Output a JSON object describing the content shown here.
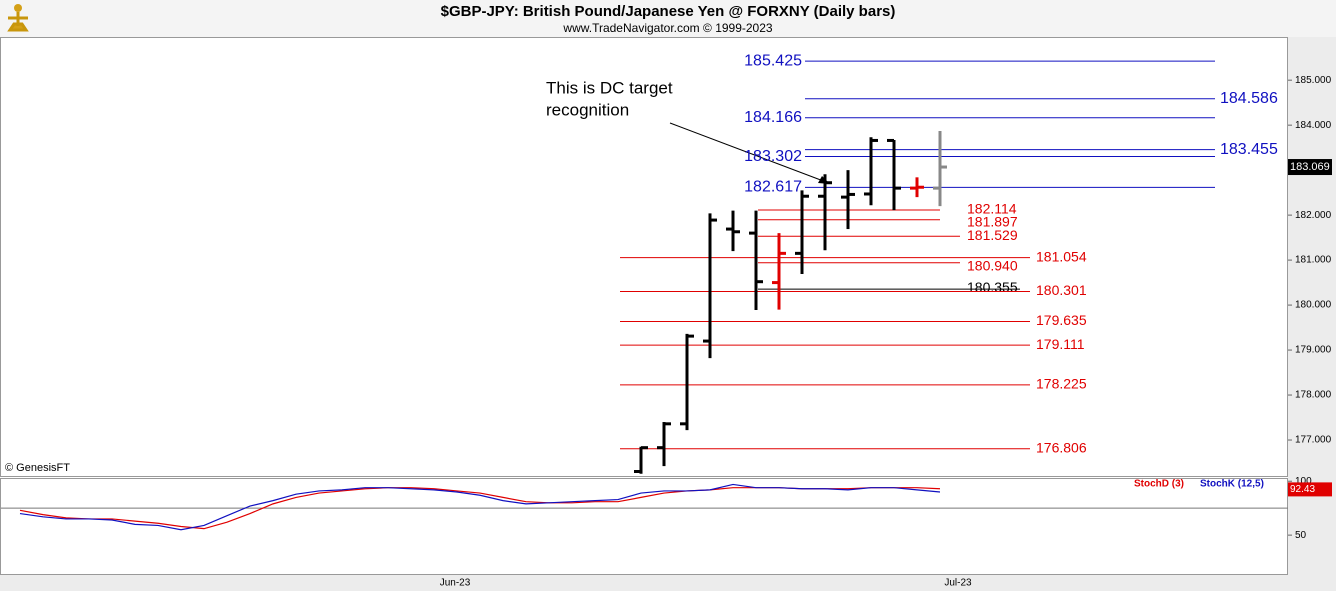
{
  "chart_data": {
    "type": "ohlc",
    "title": "$GBP-JPY:  British Pound/Japanese Yen @ FORXNY  (Daily bars)",
    "subtitle": "www.TradeNavigator.com © 1999-2023",
    "copyright": "© GenesisFT",
    "annotation": [
      "This is DC target",
      "recognition"
    ],
    "ylim": [
      176.2,
      185.96
    ],
    "yticks": [
      {
        "value": 177,
        "label": "177.000"
      },
      {
        "value": 178,
        "label": "178.000"
      },
      {
        "value": 179,
        "label": "179.000"
      },
      {
        "value": 180,
        "label": "180.000"
      },
      {
        "value": 181,
        "label": "181.000"
      },
      {
        "value": 182,
        "label": "182.000"
      },
      {
        "value": 183,
        "label": "183.000"
      },
      {
        "value": 184,
        "label": "184.000"
      },
      {
        "value": 185,
        "label": "185.000"
      }
    ],
    "last_price": 183.069,
    "ohlc": [
      {
        "open": 176.3,
        "high": 176.85,
        "low": 176.25,
        "close": 176.83
      },
      {
        "open": 176.83,
        "high": 177.4,
        "low": 176.42,
        "close": 177.36
      },
      {
        "open": 177.36,
        "high": 179.36,
        "low": 177.22,
        "close": 179.31
      },
      {
        "open": 179.2,
        "high": 182.04,
        "low": 178.82,
        "close": 181.89
      },
      {
        "open": 181.69,
        "high": 182.1,
        "low": 181.2,
        "close": 181.63
      },
      {
        "open": 181.6,
        "high": 182.1,
        "low": 179.89,
        "close": 180.52
      },
      {
        "open": 180.5,
        "high": 181.6,
        "low": 179.9,
        "close": 181.15
      },
      {
        "open": 181.15,
        "high": 182.55,
        "low": 180.69,
        "close": 182.42
      },
      {
        "open": 182.42,
        "high": 182.91,
        "low": 181.22,
        "close": 182.72
      },
      {
        "open": 182.4,
        "high": 183.0,
        "low": 181.69,
        "close": 182.46
      },
      {
        "open": 182.47,
        "high": 183.73,
        "low": 182.22,
        "close": 183.66
      },
      {
        "open": 183.66,
        "high": 183.67,
        "low": 182.11,
        "close": 182.6
      },
      {
        "open": 182.6,
        "high": 182.84,
        "low": 182.4,
        "close": 182.62
      },
      {
        "open": 182.6,
        "high": 183.87,
        "low": 182.2,
        "close": 183.069
      }
    ],
    "bar_colors": [
      "#000000",
      "#000000",
      "#000000",
      "#000000",
      "#000000",
      "#000000",
      "#e00000",
      "#000000",
      "#000000",
      "#000000",
      "#000000",
      "#000000",
      "#e00000",
      "#888888"
    ],
    "levels": [
      {
        "value": 185.425,
        "label": "185.425",
        "color": "#1010c0"
      },
      {
        "value": 184.586,
        "label": "184.586",
        "color": "#1010c0"
      },
      {
        "value": 184.166,
        "label": "184.166",
        "color": "#1010c0"
      },
      {
        "value": 183.455,
        "label": "183.455",
        "color": "#1010c0"
      },
      {
        "value": 183.302,
        "label": "183.302",
        "color": "#1010c0"
      },
      {
        "value": 182.617,
        "label": "182.617",
        "color": "#1010c0"
      },
      {
        "value": 182.114,
        "label": "182.114",
        "color": "#e00000"
      },
      {
        "value": 181.897,
        "label": "181.897",
        "color": "#e00000"
      },
      {
        "value": 181.529,
        "label": "181.529",
        "color": "#e00000"
      },
      {
        "value": 181.054,
        "label": "181.054",
        "color": "#e00000"
      },
      {
        "value": 180.94,
        "label": "180.940",
        "color": "#e00000"
      },
      {
        "value": 180.355,
        "label": "180.355",
        "color": "#000000"
      },
      {
        "value": 180.301,
        "label": "180.301",
        "color": "#e00000"
      },
      {
        "value": 179.635,
        "label": "179.635",
        "color": "#e00000"
      },
      {
        "value": 179.111,
        "label": "179.111",
        "color": "#e00000"
      },
      {
        "value": 178.225,
        "label": "178.225",
        "color": "#e00000"
      },
      {
        "value": 176.806,
        "label": "176.806",
        "color": "#e00000"
      }
    ],
    "xtick_labels": [
      "Jun-23",
      "Jul-23"
    ],
    "stochastic": {
      "ylim": [
        13,
        103
      ],
      "yticks": [
        50,
        100
      ],
      "hline": 75,
      "last_value": 92.43,
      "series": [
        {
          "name": "StochD (3)",
          "color": "#e00000",
          "values": [
            73,
            69,
            66,
            65,
            65,
            63,
            61,
            58,
            56,
            62,
            70,
            79,
            85,
            89,
            91,
            93,
            94,
            94,
            93,
            91,
            89,
            85,
            81,
            80,
            80,
            81,
            81,
            85,
            89,
            91,
            92,
            94,
            94,
            94,
            93,
            93,
            93,
            94,
            94,
            94,
            93
          ]
        },
        {
          "name": "StochK (12,5)",
          "color": "#1010c0",
          "values": [
            70,
            67,
            65,
            65,
            64,
            60,
            59,
            55,
            59,
            68,
            77,
            82,
            88,
            91,
            92,
            94,
            94,
            93,
            92,
            90,
            87,
            82,
            79,
            80,
            81,
            82,
            83,
            89,
            91,
            91,
            92,
            97,
            94,
            94,
            93,
            93,
            92,
            94,
            94,
            92,
            90
          ]
        }
      ]
    }
  }
}
